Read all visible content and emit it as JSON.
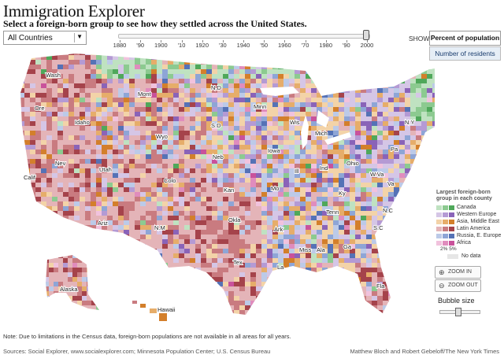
{
  "header": {
    "title": "Immigration Explorer",
    "subtitle": "Select a foreign-born group to see how they settled across the United States."
  },
  "country_select": {
    "value": "All Countries",
    "arrow": "▼"
  },
  "timeline": {
    "labels": [
      "1880",
      "'90",
      "1900",
      "'10",
      "1920",
      "'30",
      "1940",
      "'50",
      "1960",
      "'70",
      "1980",
      "'90",
      "2000"
    ],
    "selected": "2000"
  },
  "show": {
    "label": "SHOW",
    "options": [
      "Percent of population",
      "Number of residents"
    ],
    "selected": "Percent of population"
  },
  "map": {
    "states": [
      {
        "id": "wash",
        "label": "Wash"
      },
      {
        "id": "ore",
        "label": "Ore"
      },
      {
        "id": "calif",
        "label": "Calif"
      },
      {
        "id": "idaho",
        "label": "Idaho"
      },
      {
        "id": "nev",
        "label": "Nev"
      },
      {
        "id": "mont",
        "label": "Mont"
      },
      {
        "id": "wyo",
        "label": "Wyo"
      },
      {
        "id": "utah",
        "label": "Utah"
      },
      {
        "id": "ariz",
        "label": "Ariz"
      },
      {
        "id": "colo",
        "label": "Colo"
      },
      {
        "id": "nm",
        "label": "N.M"
      },
      {
        "id": "nd",
        "label": "N.D"
      },
      {
        "id": "sd",
        "label": "S.D"
      },
      {
        "id": "neb",
        "label": "Neb"
      },
      {
        "id": "kan",
        "label": "Kan"
      },
      {
        "id": "okla",
        "label": "Okla"
      },
      {
        "id": "tex",
        "label": "Tex"
      },
      {
        "id": "minn",
        "label": "Minn"
      },
      {
        "id": "iowa",
        "label": "Iowa"
      },
      {
        "id": "mo",
        "label": "Mo"
      },
      {
        "id": "ark",
        "label": "Ark"
      },
      {
        "id": "la",
        "label": "La"
      },
      {
        "id": "wis",
        "label": "Wis"
      },
      {
        "id": "ill",
        "label": "Ill"
      },
      {
        "id": "mich",
        "label": "Mich"
      },
      {
        "id": "ind",
        "label": "Ind"
      },
      {
        "id": "ohio",
        "label": "Ohio"
      },
      {
        "id": "ky",
        "label": "Ky"
      },
      {
        "id": "tenn",
        "label": "Tenn"
      },
      {
        "id": "miss",
        "label": "Miss"
      },
      {
        "id": "ala",
        "label": "Ala"
      },
      {
        "id": "ga",
        "label": "Ga"
      },
      {
        "id": "fla",
        "label": "Fla"
      },
      {
        "id": "sc",
        "label": "S.C"
      },
      {
        "id": "nc",
        "label": "N.C"
      },
      {
        "id": "va",
        "label": "Va"
      },
      {
        "id": "wva",
        "label": "W.Va"
      },
      {
        "id": "pa",
        "label": "Pa"
      },
      {
        "id": "ny",
        "label": "N.Y"
      },
      {
        "id": "me",
        "label": "Me"
      },
      {
        "id": "alaska",
        "label": "Alaska"
      },
      {
        "id": "hawaii",
        "label": "Hawaii"
      }
    ]
  },
  "legend": {
    "title": "Largest foreign-born group in each county",
    "groups": [
      {
        "label": "Canada",
        "colors": [
          "#bfe2c1",
          "#8cca90",
          "#4fa85a"
        ]
      },
      {
        "label": "Western Europe",
        "colors": [
          "#d5c6e6",
          "#b49ad4",
          "#8a63b8"
        ]
      },
      {
        "label": "Asia, Middle East",
        "colors": [
          "#f3d3a8",
          "#e6ad6a",
          "#d37f2b"
        ]
      },
      {
        "label": "Latin America",
        "colors": [
          "#e4b4b8",
          "#c97b80",
          "#a5434b"
        ]
      },
      {
        "label": "Russia, E. Europe",
        "colors": [
          "#bccae8",
          "#8ea5d6",
          "#5572b6"
        ]
      },
      {
        "label": "Africa",
        "colors": [
          "#f1c2dd",
          "#e08cbd",
          "#c9529b"
        ]
      }
    ],
    "scale_label": "2%  5%",
    "nodata_label": "No data"
  },
  "zoom": {
    "in_label": "ZOOM IN",
    "out_label": "ZOOM OUT"
  },
  "bubble": {
    "label": "Bubble size",
    "value": 0.45
  },
  "footer": {
    "note": "Note: Due to limitations in the Census data, foreign-born  populations are not available in all areas for all years.",
    "sources": "Sources: Social Explorer, www.socialexplorer.com; Minnesota Population Center; U.S. Census Bureau",
    "byline": "Matthew Bloch and Robert Gebeloff/The New York Times"
  }
}
